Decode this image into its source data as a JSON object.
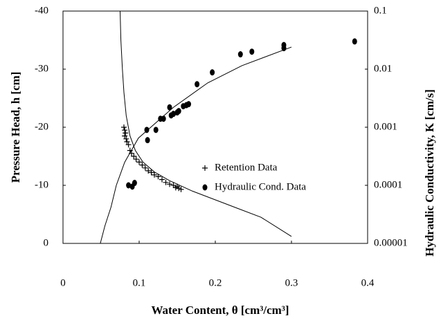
{
  "chart_data": {
    "type": "scatter",
    "xlabel": "Water Content, θ [cm³/cm³]",
    "ylabel": "Pressure Head, h [cm]",
    "y2label": "Hydraulic Conductivity, K [cm/s]",
    "xlim": [
      0,
      0.4
    ],
    "xticks": [
      0,
      0.1,
      0.2,
      0.3,
      0.4
    ],
    "ylim": [
      0,
      -40
    ],
    "yticks": [
      0,
      -10,
      -20,
      -30,
      -40
    ],
    "y2lim": [
      1e-05,
      0.1
    ],
    "y2ticks": [
      1e-05,
      0.0001,
      0.001,
      0.01,
      0.1
    ],
    "y2scale": "log",
    "grid": false,
    "legend": "center",
    "series": [
      {
        "name": "Retention Data",
        "marker": "plus",
        "color": "#000000",
        "axis": "y",
        "x": [
          0.08,
          0.081,
          0.082,
          0.081,
          0.083,
          0.084,
          0.086,
          0.088,
          0.09,
          0.093,
          0.096,
          0.1,
          0.104,
          0.108,
          0.112,
          0.116,
          0.12,
          0.125,
          0.13,
          0.135,
          0.14,
          0.145,
          0.15,
          0.152,
          0.148,
          0.155
        ],
        "values": [
          -20.0,
          -19.5,
          -19.0,
          -18.5,
          -18.0,
          -17.5,
          -17.0,
          -16.0,
          -15.5,
          -15.0,
          -14.5,
          -14.0,
          -13.5,
          -13.0,
          -12.5,
          -12.2,
          -11.8,
          -11.5,
          -11.0,
          -10.5,
          -10.2,
          -10.0,
          -9.8,
          -9.5,
          -9.6,
          -9.3
        ]
      },
      {
        "name": "Hydraulic Cond. Data",
        "marker": "ellipse",
        "color": "#000000",
        "axis": "y2",
        "x": [
          0.086,
          0.091,
          0.094,
          0.111,
          0.11,
          0.122,
          0.128,
          0.132,
          0.14,
          0.142,
          0.145,
          0.15,
          0.152,
          0.158,
          0.162,
          0.165,
          0.176,
          0.196,
          0.233,
          0.248,
          0.29,
          0.29,
          0.383
        ],
        "values": [
          0.0001,
          9.5e-05,
          0.00011,
          0.0006,
          0.0009,
          0.0009,
          0.0014,
          0.0014,
          0.0022,
          0.0016,
          0.0017,
          0.0018,
          0.0019,
          0.0023,
          0.0024,
          0.0025,
          0.0055,
          0.0088,
          0.018,
          0.02,
          0.026,
          0.023,
          0.03
        ]
      },
      {
        "marker": "line",
        "color": "#000000",
        "axis": "y",
        "x": [
          0.075,
          0.076,
          0.078,
          0.08,
          0.083,
          0.088,
          0.095,
          0.105,
          0.12,
          0.14,
          0.17,
          0.2,
          0.23,
          0.26,
          0.3
        ],
        "values": [
          -40,
          -35,
          -30,
          -26,
          -22,
          -18.5,
          -16,
          -14,
          -12.3,
          -10.8,
          -9,
          -7.5,
          -6,
          -4.5,
          -1.2
        ]
      },
      {
        "marker": "line",
        "color": "#000000",
        "axis": "y2",
        "x": [
          0.049,
          0.055,
          0.063,
          0.07,
          0.081,
          0.099,
          0.145,
          0.19,
          0.235,
          0.3
        ],
        "values": [
          1e-05,
          2e-05,
          4.2e-05,
          0.0001,
          0.00025,
          0.00065,
          0.0022,
          0.0058,
          0.0115,
          0.024
        ]
      }
    ]
  }
}
